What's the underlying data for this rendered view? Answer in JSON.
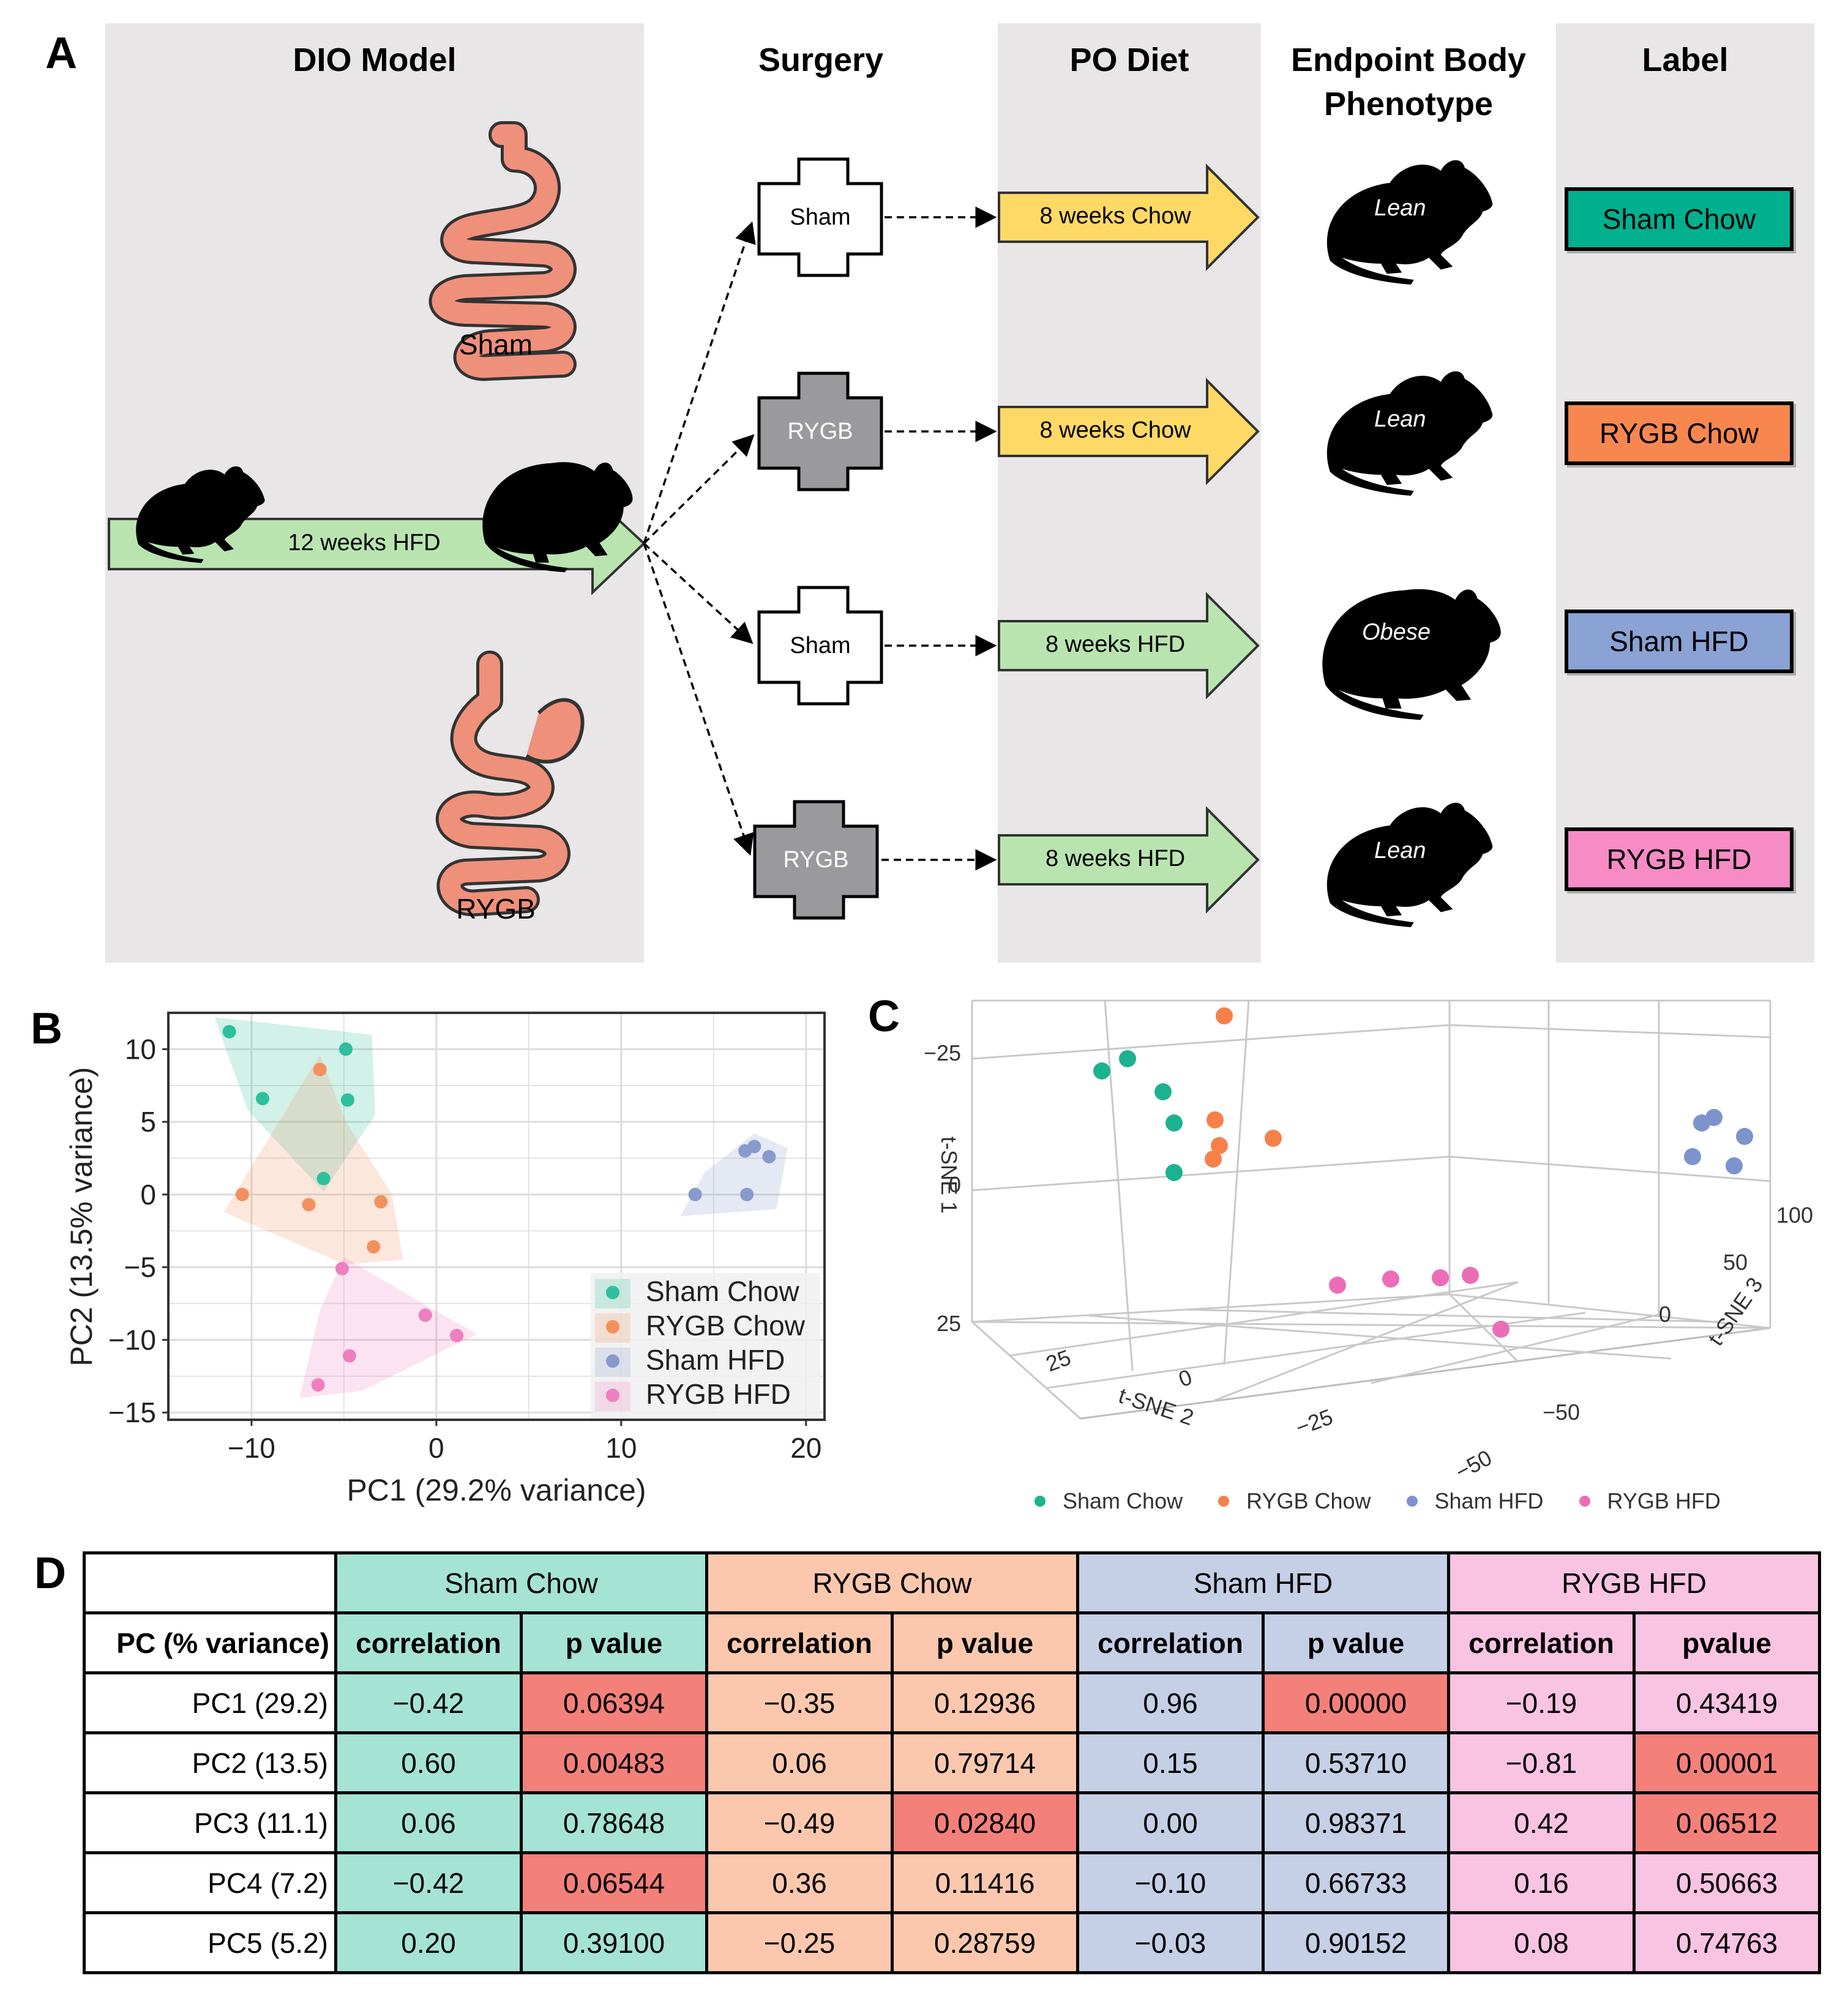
{
  "panels": {
    "A": "A",
    "B": "B",
    "C": "C",
    "D": "D"
  },
  "panelA": {
    "headers": {
      "dio": "DIO Model",
      "surgery": "Surgery",
      "podiet": "PO Diet",
      "endpoint_line1": "Endpoint Body",
      "endpoint_line2": "Phenotype",
      "label": "Label"
    },
    "gut_sham_label": "Sham",
    "gut_rygb_label": "RYGB",
    "hfd_arrow_text": "12 weeks HFD",
    "rows": [
      {
        "surgery": "Sham",
        "diet": "8 weeks Chow",
        "phenotype": "Lean",
        "label": "Sham Chow",
        "diet_color": "#ffd966",
        "label_color": "#00b08f",
        "cross_color": "#ffffff",
        "cross_text": "#000000"
      },
      {
        "surgery": "RYGB",
        "diet": "8 weeks Chow",
        "phenotype": "Lean",
        "label": "RYGB Chow",
        "diet_color": "#ffd966",
        "label_color": "#f7874f",
        "cross_color": "#9a9a9d",
        "cross_text": "#ffffff"
      },
      {
        "surgery": "Sham",
        "diet": "8 weeks HFD",
        "phenotype": "Obese",
        "label": "Sham HFD",
        "diet_color": "#b9e4b0",
        "label_color": "#8aa2d4",
        "cross_color": "#ffffff",
        "cross_text": "#000000"
      },
      {
        "surgery": "RYGB",
        "diet": "8 weeks HFD",
        "phenotype": "Lean",
        "label": "RYGB HFD",
        "diet_color": "#b9e4b0",
        "label_color": "#f78bc6",
        "cross_color": "#9a9a9d",
        "cross_text": "#ffffff"
      }
    ]
  },
  "chart_data": [
    {
      "id": "pca",
      "type": "scatter",
      "xlabel": "PC1 (29.2% variance)",
      "ylabel": "PC2 (13.5% variance)",
      "xlim": [
        -14.5,
        21
      ],
      "ylim": [
        -15.5,
        12.5
      ],
      "xticks": [
        -10,
        0,
        10,
        20
      ],
      "xtick_labels": [
        "−10",
        "0",
        "10",
        "20"
      ],
      "yticks": [
        10,
        5,
        0,
        -5,
        -10,
        -15
      ],
      "ytick_labels": [
        "10",
        "5",
        "0",
        "−5",
        "−10",
        "−15"
      ],
      "series": [
        {
          "name": "Sham Chow",
          "color": "#2ebf9c",
          "points": [
            [
              -11.2,
              11.2
            ],
            [
              -4.9,
              10.0
            ],
            [
              -9.4,
              6.6
            ],
            [
              -4.8,
              6.5
            ],
            [
              -6.1,
              1.1
            ]
          ]
        },
        {
          "name": "RYGB Chow",
          "color": "#f3905f",
          "points": [
            [
              -6.3,
              8.6
            ],
            [
              -10.5,
              0.0
            ],
            [
              -6.9,
              -0.7
            ],
            [
              -3.0,
              -0.5
            ],
            [
              -3.4,
              -3.6
            ]
          ]
        },
        {
          "name": "Sham HFD",
          "color": "#8899cc",
          "points": [
            [
              14.0,
              0.0
            ],
            [
              16.7,
              3.0
            ],
            [
              17.2,
              3.3
            ],
            [
              18.0,
              2.6
            ],
            [
              16.8,
              0.0
            ]
          ]
        },
        {
          "name": "RYGB HFD",
          "color": "#ef7fbf",
          "points": [
            [
              -5.1,
              -5.1
            ],
            [
              -0.6,
              -8.3
            ],
            [
              1.1,
              -9.7
            ],
            [
              -4.7,
              -11.1
            ],
            [
              -6.4,
              -13.1
            ]
          ]
        }
      ],
      "hulls": [
        {
          "name": "Sham Chow",
          "color": "#2ebf9c",
          "points": [
            [
              -12.0,
              12.2
            ],
            [
              -3.5,
              11.0
            ],
            [
              -3.3,
              5.5
            ],
            [
              -6.1,
              0.2
            ],
            [
              -10.2,
              5.8
            ]
          ]
        },
        {
          "name": "RYGB Chow",
          "color": "#f3905f",
          "points": [
            [
              -6.3,
              9.6
            ],
            [
              -4.9,
              5.0
            ],
            [
              -2.4,
              0.0
            ],
            [
              -1.8,
              -4.5
            ],
            [
              -5.0,
              -4.8
            ],
            [
              -11.5,
              -1.2
            ],
            [
              -10.2,
              1.5
            ]
          ]
        },
        {
          "name": "Sham HFD",
          "color": "#8899cc",
          "points": [
            [
              13.2,
              -1.5
            ],
            [
              18.4,
              -1.0
            ],
            [
              19.0,
              3.2
            ],
            [
              17.2,
              4.2
            ],
            [
              14.5,
              1.5
            ]
          ]
        },
        {
          "name": "RYGB HFD",
          "color": "#ef7fbf",
          "points": [
            [
              -5.0,
              -4.3
            ],
            [
              -0.6,
              -7.6
            ],
            [
              2.2,
              -9.6
            ],
            [
              -4.0,
              -13.5
            ],
            [
              -7.4,
              -14.0
            ],
            [
              -6.3,
              -8.0
            ]
          ]
        }
      ]
    },
    {
      "id": "tsne",
      "type": "scatter",
      "axis_labels": {
        "x": "t-SNE 2",
        "y": "t-SNE 3",
        "z": "t-SNE 1"
      },
      "ticks": {
        "z": [
          "−25",
          "0",
          "25"
        ],
        "x": [
          "25",
          "0",
          "−25",
          "−50"
        ],
        "y": [
          "100",
          "50",
          "0",
          "−50"
        ]
      },
      "legend": [
        "Sham Chow",
        "RYGB Chow",
        "Sham HFD",
        "RYGB HFD"
      ],
      "legend_colors": [
        "#1cb28f",
        "#f58149",
        "#7d93cc",
        "#ec6db7"
      ]
    }
  ],
  "tableD": {
    "row_header_label": "PC (% variance)",
    "groups": [
      {
        "name": "Sham Chow",
        "color": "#a5e3d4"
      },
      {
        "name": "RYGB Chow",
        "color": "#fbc8ae"
      },
      {
        "name": "Sham HFD",
        "color": "#c5cfe6"
      },
      {
        "name": "RYGB HFD",
        "color": "#f9c3e2"
      }
    ],
    "subheaders": [
      "correlation",
      "p value",
      "correlation",
      "p value",
      "correlation",
      "p value",
      "correlation",
      "pvalue"
    ],
    "highlight_color": "#f4807a",
    "rows": [
      {
        "pc": "PC1 (29.2)",
        "cells": [
          "−0.42",
          "0.06394",
          "−0.35",
          "0.12936",
          "0.96",
          "0.00000",
          "−0.19",
          "0.43419"
        ],
        "hl": [
          1,
          5
        ]
      },
      {
        "pc": "PC2 (13.5)",
        "cells": [
          "0.60",
          "0.00483",
          "0.06",
          "0.79714",
          "0.15",
          "0.53710",
          "−0.81",
          "0.00001"
        ],
        "hl": [
          1,
          7
        ]
      },
      {
        "pc": "PC3 (11.1)",
        "cells": [
          "0.06",
          "0.78648",
          "−0.49",
          "0.02840",
          "0.00",
          "0.98371",
          "0.42",
          "0.06512"
        ],
        "hl": [
          3,
          7
        ]
      },
      {
        "pc": "PC4 (7.2)",
        "cells": [
          "−0.42",
          "0.06544",
          "0.36",
          "0.11416",
          "−0.10",
          "0.66733",
          "0.16",
          "0.50663"
        ],
        "hl": [
          1
        ]
      },
      {
        "pc": "PC5 (5.2)",
        "cells": [
          "0.20",
          "0.39100",
          "−0.25",
          "0.28759",
          "−0.03",
          "0.90152",
          "0.08",
          "0.74763"
        ],
        "hl": []
      }
    ]
  }
}
